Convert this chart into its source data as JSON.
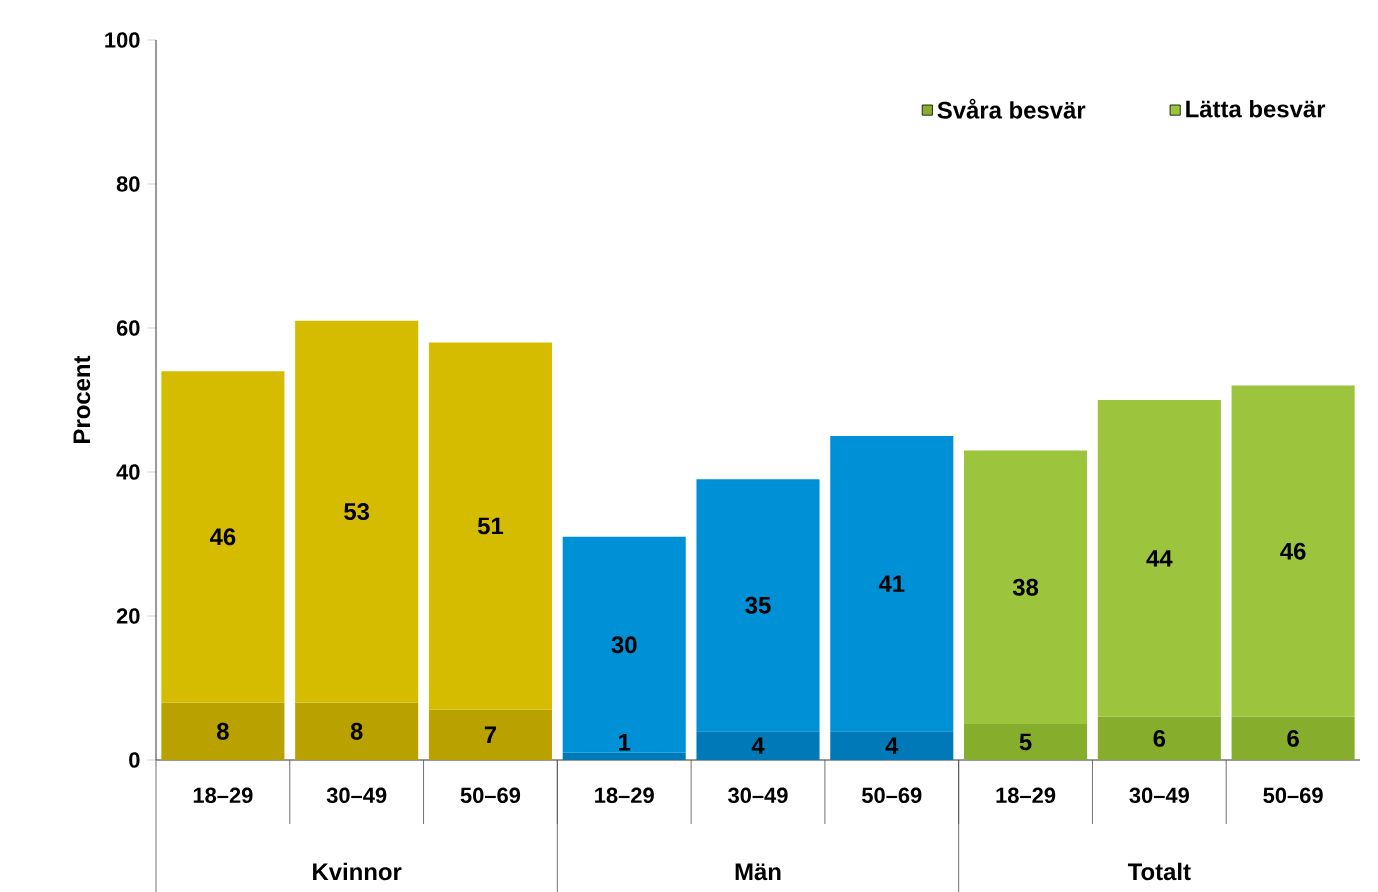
{
  "chart_data": {
    "type": "bar",
    "stacked": true,
    "ylabel": "Procent",
    "categories": [
      "18–29",
      "30–49",
      "50–69",
      "18–29",
      "30–49",
      "50–69",
      "18–29",
      "30–49",
      "50–69"
    ],
    "series": [
      {
        "name": "Svåra besvär",
        "color": "#86ad2c",
        "colors": [
          "#b9a200",
          "#b9a200",
          "#b9a200",
          "#0079b8",
          "#0079b8",
          "#0079b8",
          "#86ad2c",
          "#86ad2c",
          "#86ad2c"
        ],
        "values": [
          8,
          8,
          7,
          1,
          4,
          4,
          5,
          6,
          6
        ]
      },
      {
        "name": "Lätta besvär",
        "color": "#9cc43c",
        "colors": [
          "#d6bc00",
          "#d6bc00",
          "#d6bc00",
          "#0090d6",
          "#0090d6",
          "#0090d6",
          "#9cc43c",
          "#9cc43c",
          "#9cc43c"
        ],
        "values": [
          46,
          53,
          51,
          30,
          35,
          41,
          38,
          44,
          46
        ]
      }
    ],
    "ylim": [
      0,
      100
    ],
    "yticks": [
      0,
      20,
      40,
      60,
      80,
      100
    ],
    "data_labels": true,
    "legend": "top right",
    "grid": false,
    "annotations": [
      "Kvinnor",
      "Män",
      "Totalt"
    ]
  }
}
